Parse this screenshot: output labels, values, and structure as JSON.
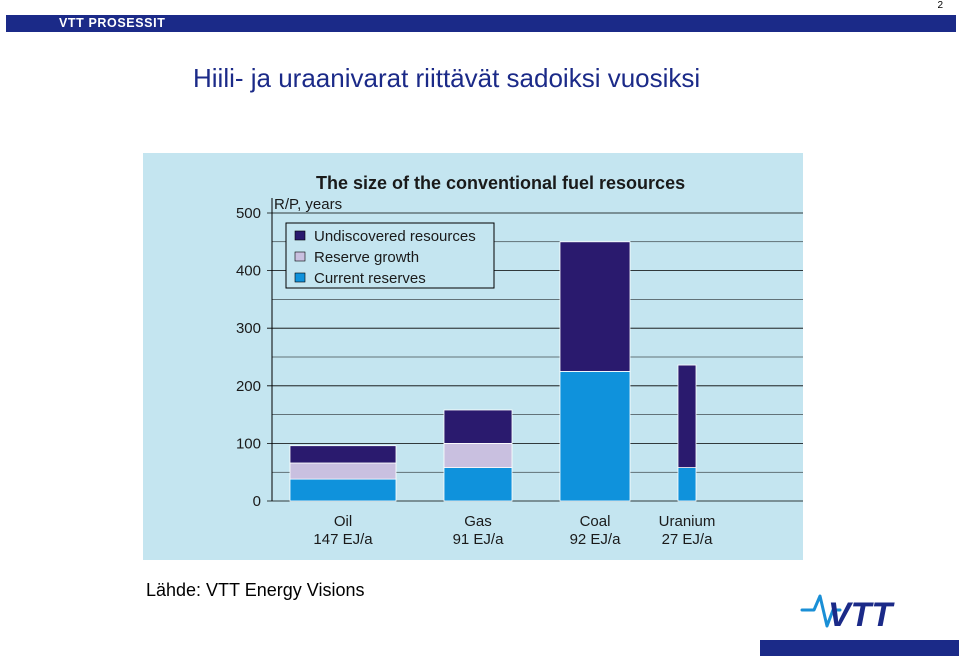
{
  "header": {
    "brand": "VTT PROSESSIT",
    "page_number": "2"
  },
  "slide": {
    "title": "Hiili- ja uraanivarat riittävät sadoiksi vuosiksi",
    "source": "Lähde: VTT Energy Visions"
  },
  "logo": {
    "text": "VTT",
    "icon": "vtt-wave-logo"
  },
  "colors": {
    "brand": "#1b2a88",
    "panel": "#c4e5f0",
    "undiscovered": "#2a1a6e",
    "reserve_growth": "#c9c0e0",
    "current": "#0f92dc"
  },
  "chart_data": {
    "type": "bar",
    "stacked": true,
    "title": "The size of the conventional fuel resources",
    "ylabel": "R/P, years",
    "ylim": [
      0,
      500
    ],
    "yticks": [
      0,
      100,
      200,
      300,
      400,
      500
    ],
    "legend_position": "top-left",
    "categories": [
      "Oil",
      "Gas",
      "Coal",
      "Uranium"
    ],
    "category_sublabels": [
      "147 EJ/a",
      "91 EJ/a",
      "92 EJ/a",
      "27 EJ/a"
    ],
    "series": [
      {
        "name": "Current reserves",
        "values": [
          38,
          58,
          225,
          58
        ]
      },
      {
        "name": "Reserve growth",
        "values": [
          28,
          42,
          0,
          0
        ]
      },
      {
        "name": "Undiscovered resources",
        "values": [
          30,
          58,
          225,
          178
        ]
      }
    ],
    "legend_order": [
      "Undiscovered resources",
      "Reserve growth",
      "Current reserves"
    ]
  }
}
